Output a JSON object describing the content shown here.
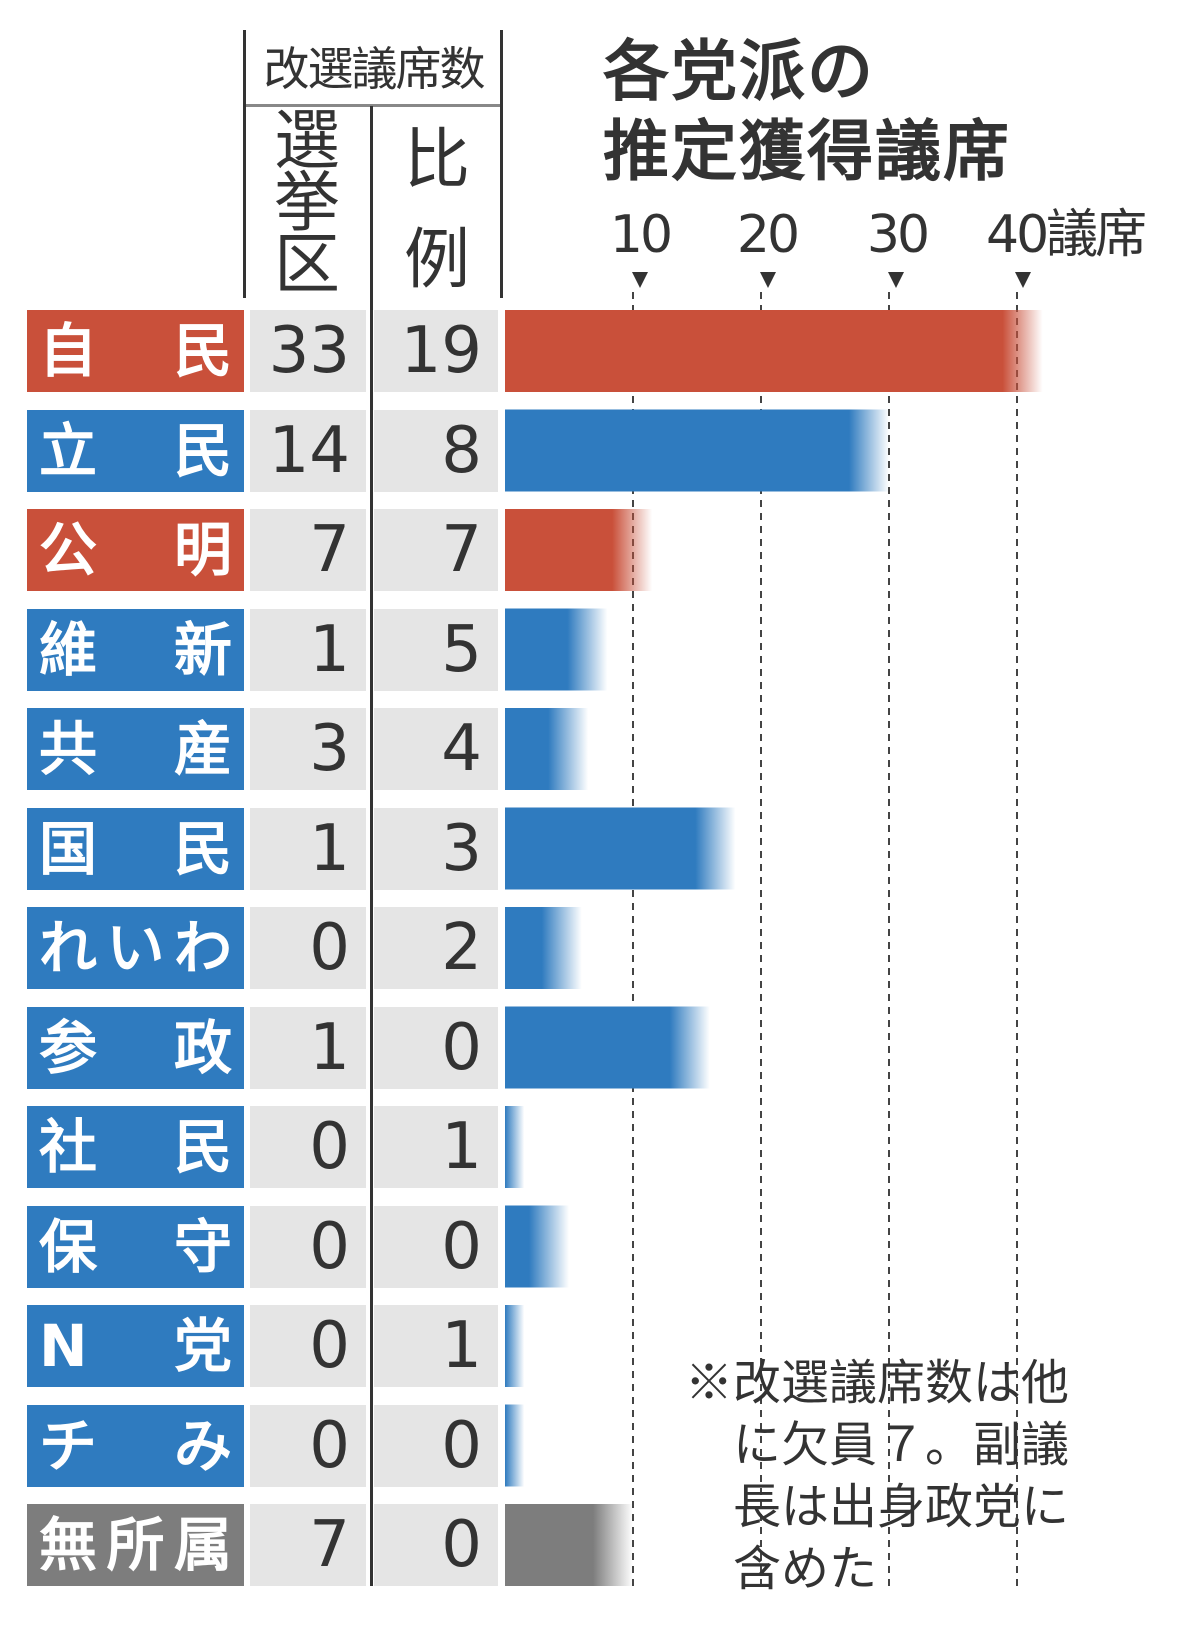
{
  "header": {
    "seat_group_label": "改選議席数",
    "district_label": "選\n挙\n区",
    "pr_label": "比\n例"
  },
  "title_lines": [
    "各党派の",
    "推定獲得議席"
  ],
  "axis_ticks": [
    "10",
    "20",
    "30",
    "40議席"
  ],
  "note": "※改選議席数は他\n　に欠員７。副議\n　長は出身政党に\n　含めた",
  "colors": {
    "ruling": "#c9503a",
    "opposition": "#2f7bbf",
    "independent": "#7d7d7d"
  },
  "chart_data": {
    "type": "bar",
    "orientation": "horizontal",
    "title": "各党派の推定獲得議席",
    "xlim": [
      0,
      44
    ],
    "xticks": [
      10,
      20,
      30,
      40
    ],
    "x_unit": "議席",
    "table_columns": [
      "選挙区",
      "比例"
    ],
    "parties": [
      {
        "name": "自　民",
        "district": "33",
        "pr": "19",
        "estimate": 42,
        "color": "ruling"
      },
      {
        "name": "立　民",
        "district": "14",
        "pr": "8",
        "estimate": 30,
        "color": "opposition"
      },
      {
        "name": "公　明",
        "district": "7",
        "pr": "7",
        "estimate": 11.5,
        "color": "ruling"
      },
      {
        "name": "維　新",
        "district": "1",
        "pr": "5",
        "estimate": 8,
        "color": "opposition"
      },
      {
        "name": "共　産",
        "district": "3",
        "pr": "4",
        "estimate": 6.5,
        "color": "opposition"
      },
      {
        "name": "国　民",
        "district": "1",
        "pr": "3",
        "estimate": 18,
        "color": "opposition"
      },
      {
        "name": "れいわ",
        "district": "0",
        "pr": "2",
        "estimate": 6,
        "color": "opposition"
      },
      {
        "name": "参　政",
        "district": "1",
        "pr": "0",
        "estimate": 16,
        "color": "opposition"
      },
      {
        "name": "社　民",
        "district": "0",
        "pr": "1",
        "estimate": 1.5,
        "color": "opposition"
      },
      {
        "name": "保　守",
        "district": "0",
        "pr": "0",
        "estimate": 5,
        "color": "opposition"
      },
      {
        "name": "N　党",
        "district": "0",
        "pr": "1",
        "estimate": 1.5,
        "color": "opposition"
      },
      {
        "name": "チ　み",
        "district": "0",
        "pr": "0",
        "estimate": 1.5,
        "color": "opposition"
      },
      {
        "name": "無所属",
        "district": "7",
        "pr": "0",
        "estimate": 10,
        "color": "independent"
      }
    ]
  }
}
